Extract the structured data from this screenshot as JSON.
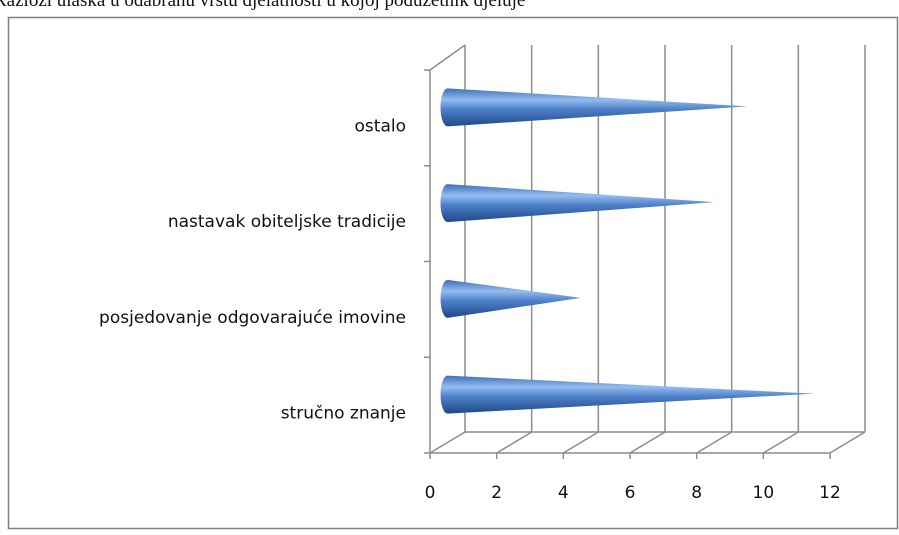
{
  "chart_data": {
    "type": "bar",
    "title": "Razlozi ulaska u odabranu vrstu djelatnosti u kojoj poduzetnik djeluje",
    "categories": [
      "stručno znanje",
      "posjedovanje odgovarajuće imovine",
      "nastavak obiteljske tradicije",
      "ostalo"
    ],
    "values": [
      11,
      4,
      8,
      9
    ],
    "color": "#3a6cb5",
    "xlim": [
      0,
      12
    ],
    "xticks": [
      0,
      2,
      4,
      6,
      8,
      10,
      12
    ],
    "grid": true
  }
}
